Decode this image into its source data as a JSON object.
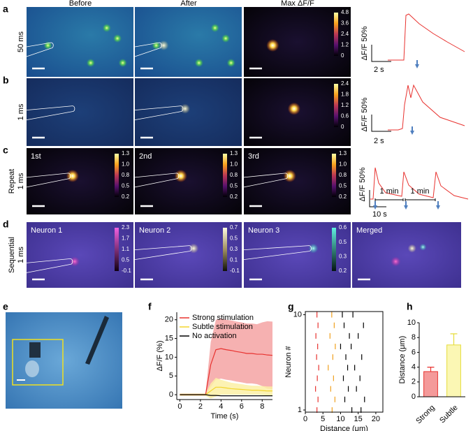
{
  "panels": {
    "a": {
      "label": "a",
      "row_labels": [
        "50 ms"
      ],
      "headers": [
        "Before",
        "After",
        "Max ΔF/F"
      ],
      "colorbar": [
        "4.8",
        "3.6",
        "2.4",
        "1.2",
        "0"
      ],
      "scale": [
        "ΔF/F 50%",
        "2 s"
      ]
    },
    "b": {
      "label": "b",
      "row_labels": [
        "1 ms"
      ],
      "colorbar": [
        "2.4",
        "1.8",
        "1.2",
        "0.6",
        "0"
      ],
      "scale": [
        "ΔF/F 50%",
        "2 s"
      ]
    },
    "c": {
      "label": "c",
      "row_labels": [
        "Repeat",
        "1 ms"
      ],
      "titles": [
        "1st",
        "2nd",
        "3rd"
      ],
      "colorbar": [
        "1.3",
        "1.0",
        "0.8",
        "0.5",
        "0.2"
      ],
      "scale": [
        "ΔF/F 50%",
        "10 s"
      ],
      "intervals": [
        "1 min",
        "1 min"
      ]
    },
    "d": {
      "label": "d",
      "row_labels": [
        "Sequential",
        "1 ms"
      ],
      "titles": [
        "Neuron 1",
        "Neuron 2",
        "Neuron 3",
        "Merged"
      ],
      "colorbars": [
        [
          "2.3",
          "1.7",
          "1.1",
          "0.5",
          "-0.1"
        ],
        [
          "0.7",
          "0.5",
          "0.3",
          "0.1",
          "-0.1"
        ],
        [
          "0.6",
          "0.5",
          "0.3",
          "0.2"
        ]
      ]
    },
    "e": {
      "label": "e"
    }
  },
  "chart_data": [
    {
      "type": "line",
      "panel": "f",
      "xlabel": "Time (s)",
      "ylabel": "ΔF/F (%)",
      "xlim": [
        -0.3,
        9
      ],
      "xticks": [
        0,
        2,
        4,
        6,
        8
      ],
      "ylim": [
        -1.3,
        22
      ],
      "yticks": [
        0,
        5,
        10,
        15,
        20
      ],
      "legend": "top-left",
      "x": [
        0,
        0.5,
        1,
        1.5,
        2,
        2.5,
        3,
        3.5,
        4,
        4.5,
        5,
        5.5,
        6,
        6.5,
        7,
        7.5,
        8,
        8.5,
        9
      ],
      "series": [
        {
          "name": "Strong stimulation",
          "color": "#e8322f",
          "band_color": "#f4a3a3",
          "values": [
            0,
            0,
            0,
            0,
            0,
            0,
            8,
            12,
            12.3,
            12,
            11.8,
            11.5,
            11.3,
            11,
            11,
            10.8,
            10.8,
            10.6,
            10.5
          ],
          "error": [
            0.3,
            0.3,
            0.3,
            0.3,
            0.3,
            0.3,
            6,
            8,
            8,
            8,
            8,
            8,
            8,
            8,
            8,
            8,
            8.5,
            9,
            9
          ]
        },
        {
          "name": "Subtle stimulation",
          "color": "#f2d52c",
          "band_color": "#fbf0a6",
          "values": [
            0,
            0,
            0,
            0,
            0,
            0,
            1,
            2,
            2,
            1.8,
            1.6,
            1.5,
            1.4,
            1.3,
            1.2,
            1.2,
            1.1,
            1,
            1
          ],
          "error": [
            0.3,
            0.3,
            0.3,
            0.3,
            0.3,
            0.3,
            2,
            2.5,
            2,
            1.8,
            1.6,
            1.5,
            1.4,
            1.3,
            1.2,
            1.2,
            1.2,
            1.2,
            1.2
          ]
        },
        {
          "name": "No activation",
          "color": "#000000",
          "values": [
            0,
            0,
            0,
            0,
            0,
            0,
            -0.2,
            -0.2,
            -0.3,
            -0.3,
            -0.3,
            -0.3,
            -0.3,
            -0.3,
            -0.3,
            -0.3,
            -0.3,
            -0.3,
            -0.3
          ]
        }
      ]
    },
    {
      "type": "scatter",
      "panel": "g",
      "xlabel": "Distance (μm)",
      "ylabel": "Neuron #",
      "xlim": [
        0,
        22
      ],
      "xticks": [
        0,
        5,
        10,
        15,
        20
      ],
      "ylim": [
        0.8,
        10.3
      ],
      "yticks": [
        1,
        10
      ],
      "series": [
        {
          "color": "#e8322f",
          "x": [
            3.3,
            3.6,
            3,
            3.5,
            3.2,
            3.8,
            3.4,
            2.9,
            3.6,
            3.3
          ],
          "y": [
            10,
            9,
            8,
            7,
            6,
            5,
            4,
            3,
            2,
            1
          ]
        },
        {
          "color": "#f0a01e",
          "x": [
            7.5,
            8.2,
            7,
            8.5,
            7.8,
            6.5,
            8,
            7.2,
            8.4,
            7.6
          ],
          "y": [
            10,
            9,
            8,
            7,
            6,
            5,
            4,
            3,
            2,
            1
          ]
        },
        {
          "color": "#000000",
          "x": [
            10.5,
            13.5,
            11,
            16.5,
            12.5,
            15,
            10,
            13,
            11.5,
            16,
            14,
            12,
            10.8,
            15.5,
            12.2,
            14.5,
            11.2,
            16.8,
            13.2,
            15.8
          ],
          "y": [
            10,
            10,
            9,
            9,
            8,
            8,
            7,
            7,
            6,
            6,
            5,
            5,
            4,
            4,
            3,
            3,
            2,
            2,
            1,
            1
          ]
        }
      ]
    },
    {
      "type": "bar",
      "panel": "h",
      "ylabel": "Distance (μm)",
      "ylim": [
        0,
        10
      ],
      "yticks": [
        0,
        2,
        4,
        6,
        8,
        10
      ],
      "categories": [
        "Strong",
        "Subtle"
      ],
      "values": [
        3.4,
        7
      ],
      "error": [
        0.6,
        1.5
      ],
      "colors": [
        "#e8322f",
        "#e6dc3a"
      ],
      "fills": [
        "#f49a9a",
        "#fbf7b4"
      ]
    }
  ]
}
